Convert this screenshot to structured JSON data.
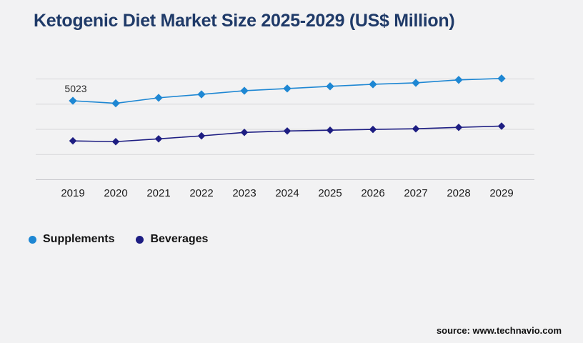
{
  "page": {
    "background": "#f2f2f3"
  },
  "header": {
    "title": "Ketogenic Diet Market Size 2025-2029 (US$ Million)",
    "title_color": "#1f3a68"
  },
  "footer": {
    "source": "source: www.technavio.com"
  },
  "legend": {
    "items": [
      {
        "label": "Supplements",
        "color": "#1e87d3"
      },
      {
        "label": "Beverages",
        "color": "#1d1d82"
      }
    ]
  },
  "chart_data": {
    "type": "line",
    "title": "Ketogenic Diet Market Size 2025-2029 (US$ Million)",
    "categories": [
      "2019",
      "2020",
      "2021",
      "2022",
      "2023",
      "2024",
      "2025",
      "2026",
      "2027",
      "2028",
      "2029"
    ],
    "series": [
      {
        "name": "Supplements",
        "color": "#1e87d3",
        "marker": "diamond",
        "values": [
          5023,
          4860,
          5210,
          5430,
          5660,
          5800,
          5940,
          6070,
          6160,
          6350,
          6440
        ]
      },
      {
        "name": "Beverages",
        "color": "#1d1d82",
        "marker": "diamond",
        "values": [
          2470,
          2420,
          2600,
          2790,
          3010,
          3100,
          3150,
          3200,
          3240,
          3330,
          3410
        ]
      }
    ],
    "data_labels": [
      {
        "series": "Supplements",
        "category": "2019",
        "text": "5023"
      }
    ],
    "xlabel": "",
    "ylabel": "",
    "ylim": [
      0,
      7000
    ],
    "y_axis_labels_visible": false,
    "grid": "horizontal",
    "legend_position": "bottom-left"
  }
}
